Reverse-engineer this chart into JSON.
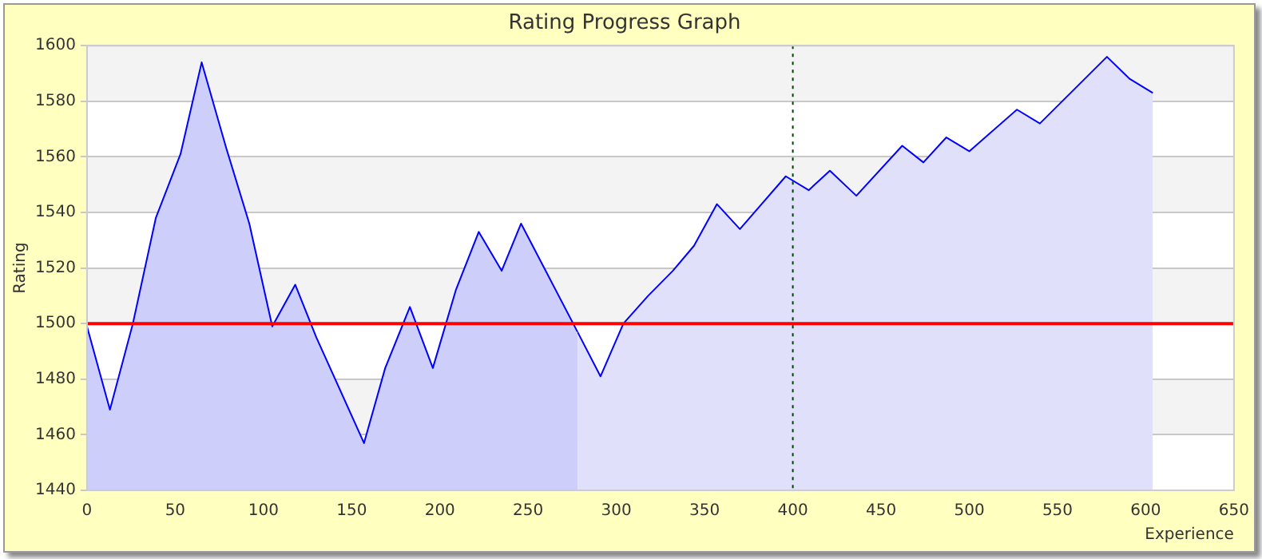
{
  "chart_data": {
    "type": "area",
    "title": "Rating Progress Graph",
    "xlabel": "Experience",
    "ylabel": "Rating",
    "series": [
      {
        "color": "#cdcefa",
        "x": [
          0,
          13,
          26,
          39,
          53,
          65,
          79,
          92,
          105,
          118,
          130,
          157,
          169,
          183,
          196,
          209,
          222,
          235,
          246,
          278
        ],
        "values": [
          1499,
          1469,
          1500,
          1538,
          1561,
          1594,
          1563,
          1536,
          1499,
          1514,
          1495,
          1457,
          1484,
          1506,
          1484,
          1512,
          1533,
          1519,
          1536,
          1497
        ]
      },
      {
        "color": "#e0e0fa",
        "x": [
          278,
          291,
          304,
          318,
          332,
          344,
          357,
          370,
          396,
          409,
          421,
          436,
          462,
          474,
          487,
          500,
          527,
          540,
          578,
          591,
          604
        ],
        "values": [
          1497,
          1481,
          1500,
          1510,
          1519,
          1528,
          1543,
          1534,
          1553,
          1548,
          1555,
          1546,
          1564,
          1558,
          1567,
          1562,
          1577,
          1572,
          1596,
          1588,
          1583
        ]
      }
    ],
    "ref_lines": [
      {
        "axis": "y",
        "value": 1500,
        "color": "#ff0000",
        "line_style": "solid"
      },
      {
        "axis": "x",
        "value": 400,
        "color": "#004000",
        "line_style": "dotted"
      }
    ],
    "xlim": [
      0,
      650
    ],
    "xticks": [
      0,
      50,
      100,
      150,
      200,
      250,
      300,
      350,
      400,
      450,
      500,
      550,
      600,
      650
    ],
    "ylim": [
      1440,
      1600
    ],
    "yticks": [
      1440,
      1460,
      1480,
      1500,
      1520,
      1540,
      1560,
      1580,
      1600
    ],
    "grid": "y",
    "legend": false,
    "marker": "none"
  }
}
